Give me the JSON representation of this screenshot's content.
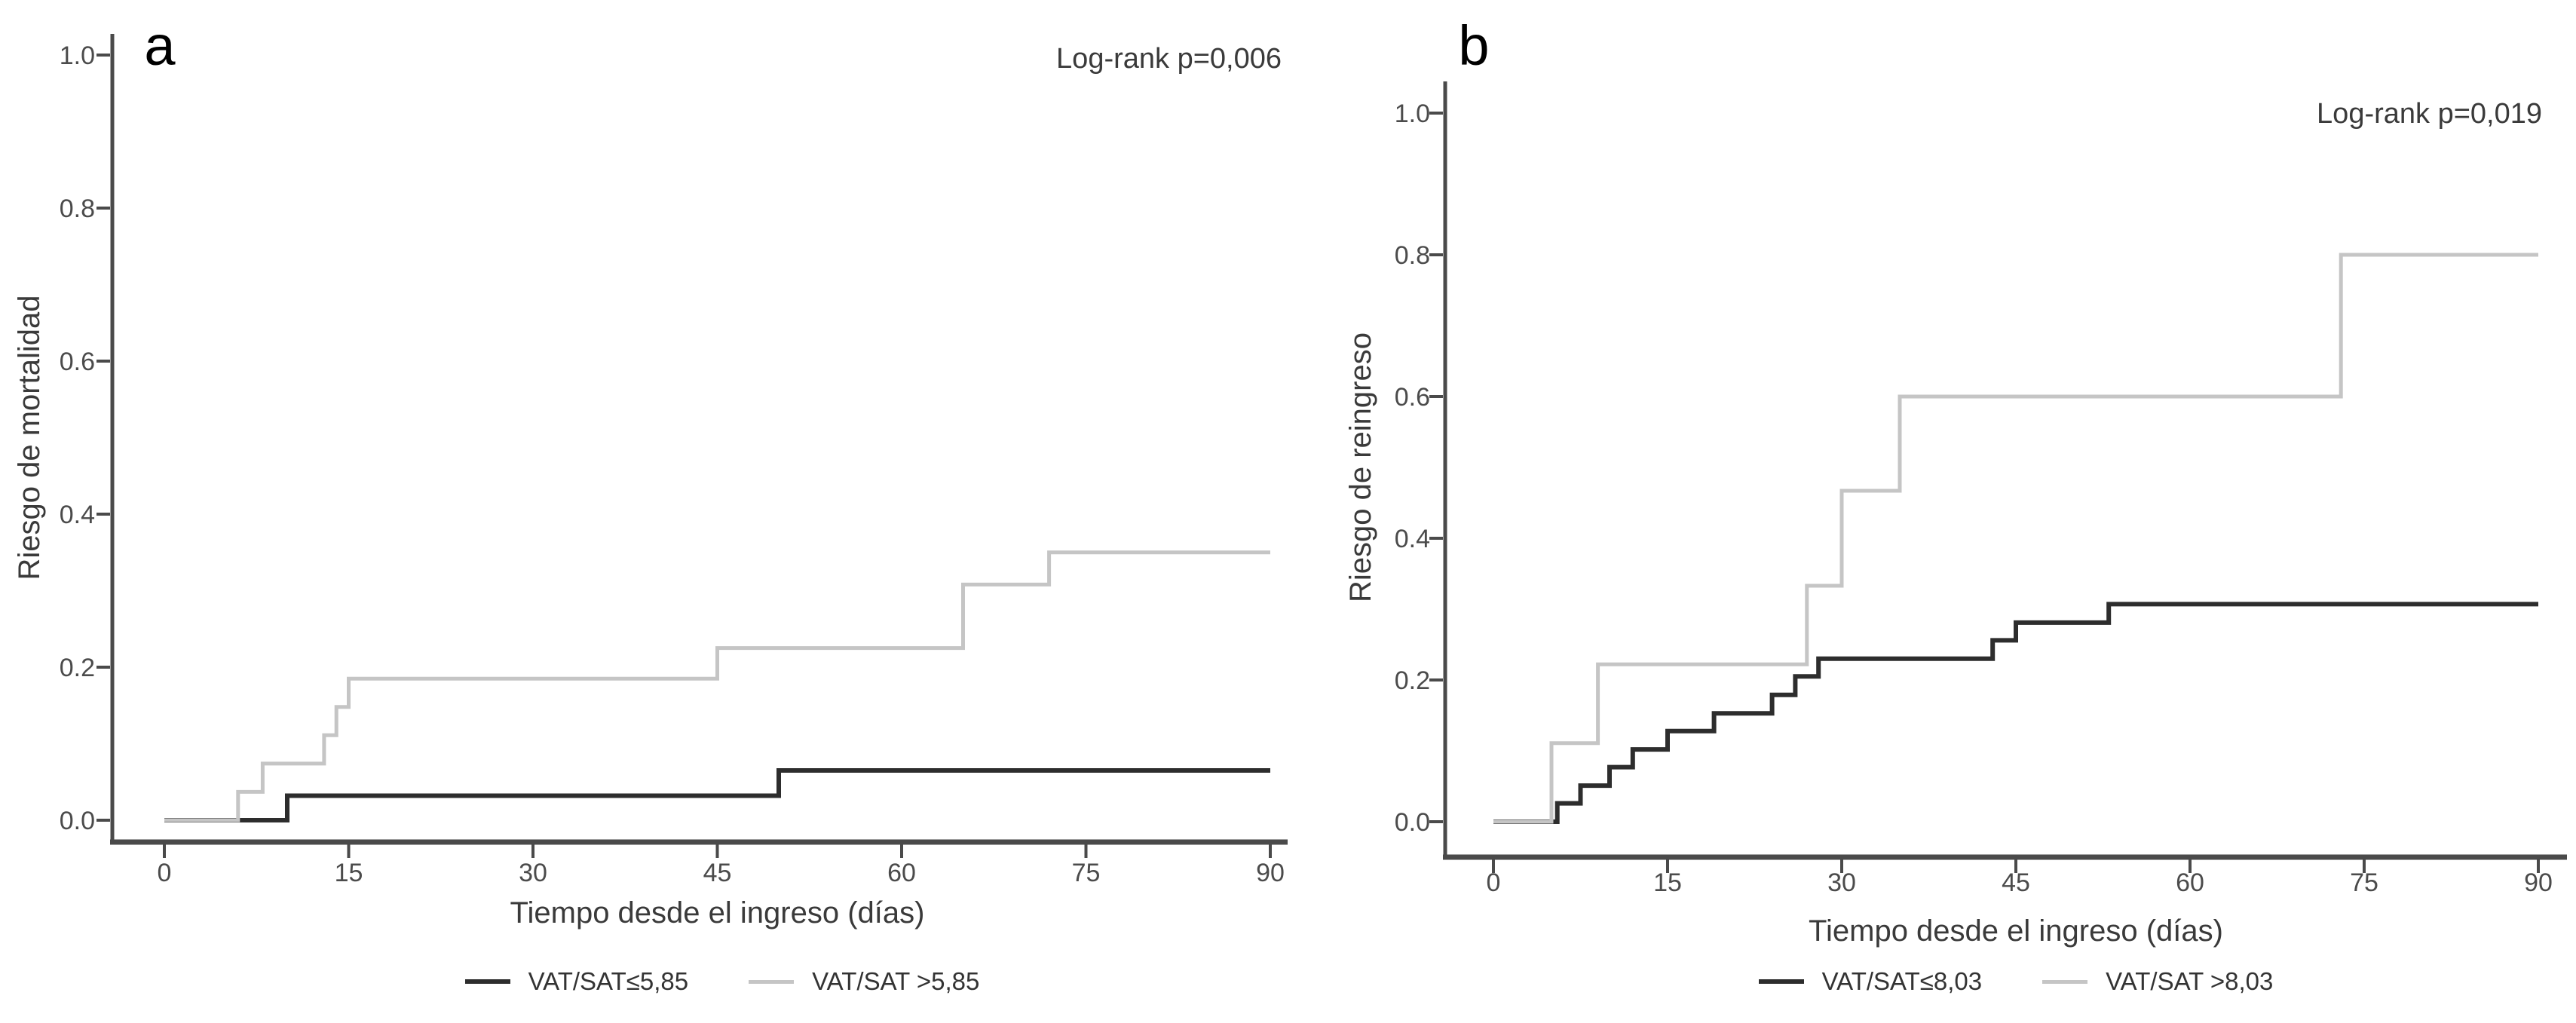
{
  "page": {
    "background": "#ffffff"
  },
  "axis_style": {
    "axis_color": "#4a4a4a",
    "tick_label_color": "#4b4b4b",
    "title_color": "#3a3a3a",
    "annotation_color": "#3a3a3a",
    "panel_label_color": "#000000"
  },
  "chart_data": [
    {
      "id": "a",
      "type": "line",
      "subtype": "kaplan-meier-cumulative-risk-step",
      "panel_label": "a",
      "annotation": "Log-rank p=0,006",
      "xlabel": "Tiempo desde el ingreso (días)",
      "ylabel": "Riesgo de mortalidad",
      "xlim": [
        0,
        90
      ],
      "ylim": [
        0.0,
        1.0
      ],
      "grid": false,
      "legend_position": "bottom",
      "x_ticks": [
        {
          "value": 0,
          "label": "0"
        },
        {
          "value": 15,
          "label": "15"
        },
        {
          "value": 30,
          "label": "30"
        },
        {
          "value": 45,
          "label": "45"
        },
        {
          "value": 60,
          "label": "60"
        },
        {
          "value": 75,
          "label": "75"
        },
        {
          "value": 90,
          "label": "90"
        }
      ],
      "y_ticks": [
        {
          "value": 0.0,
          "label": "0.0"
        },
        {
          "value": 0.2,
          "label": "0.2"
        },
        {
          "value": 0.4,
          "label": "0.4"
        },
        {
          "value": 0.6,
          "label": "0.6"
        },
        {
          "value": 0.8,
          "label": "0.8"
        },
        {
          "value": 1.0,
          "label": "1.0"
        }
      ],
      "series": [
        {
          "name": "VAT/SAT≤5,85",
          "color": "#2d2d2d",
          "line_width": 6,
          "step_points": [
            [
              0,
              0
            ],
            [
              10,
              0.032
            ],
            [
              50,
              0.065
            ]
          ],
          "end_time": 90
        },
        {
          "name": "VAT/SAT >5,85",
          "color": "#c5c5c5",
          "line_width": 5,
          "step_points": [
            [
              0,
              0
            ],
            [
              6,
              0.037
            ],
            [
              8,
              0.074
            ],
            [
              13,
              0.111
            ],
            [
              14,
              0.148
            ],
            [
              15,
              0.185
            ],
            [
              45,
              0.225
            ],
            [
              65,
              0.308
            ],
            [
              72,
              0.35
            ]
          ],
          "end_time": 90
        }
      ]
    },
    {
      "id": "b",
      "type": "line",
      "subtype": "kaplan-meier-cumulative-risk-step",
      "panel_label": "b",
      "annotation": "Log-rank p=0,019",
      "xlabel": "Tiempo desde el ingreso (días)",
      "ylabel": "Riesgo de reingreso",
      "xlim": [
        0,
        90
      ],
      "ylim": [
        0.0,
        1.0
      ],
      "grid": false,
      "legend_position": "bottom",
      "x_ticks": [
        {
          "value": 0,
          "label": "0"
        },
        {
          "value": 15,
          "label": "15"
        },
        {
          "value": 30,
          "label": "30"
        },
        {
          "value": 45,
          "label": "45"
        },
        {
          "value": 60,
          "label": "60"
        },
        {
          "value": 75,
          "label": "75"
        },
        {
          "value": 90,
          "label": "90"
        }
      ],
      "y_ticks": [
        {
          "value": 0.0,
          "label": "0.0"
        },
        {
          "value": 0.2,
          "label": "0.2"
        },
        {
          "value": 0.4,
          "label": "0.4"
        },
        {
          "value": 0.6,
          "label": "0.6"
        },
        {
          "value": 0.8,
          "label": "0.8"
        },
        {
          "value": 1.0,
          "label": "1.0"
        }
      ],
      "series": [
        {
          "name": "VAT/SAT≤8,03",
          "color": "#2d2d2d",
          "line_width": 6,
          "step_points": [
            [
              0,
              0
            ],
            [
              5.5,
              0.026
            ],
            [
              7.5,
              0.051
            ],
            [
              10,
              0.077
            ],
            [
              12,
              0.102
            ],
            [
              15,
              0.128
            ],
            [
              19,
              0.153
            ],
            [
              24,
              0.179
            ],
            [
              26,
              0.205
            ],
            [
              28,
              0.23
            ],
            [
              43,
              0.256
            ],
            [
              45,
              0.281
            ],
            [
              53,
              0.307
            ]
          ],
          "end_time": 90
        },
        {
          "name": "VAT/SAT >8,03",
          "color": "#c5c5c5",
          "line_width": 5,
          "step_points": [
            [
              0,
              0
            ],
            [
              5,
              0.111
            ],
            [
              9,
              0.222
            ],
            [
              27,
              0.333
            ],
            [
              30,
              0.467
            ],
            [
              35,
              0.6
            ],
            [
              73,
              0.8
            ]
          ],
          "end_time": 90
        }
      ]
    }
  ]
}
